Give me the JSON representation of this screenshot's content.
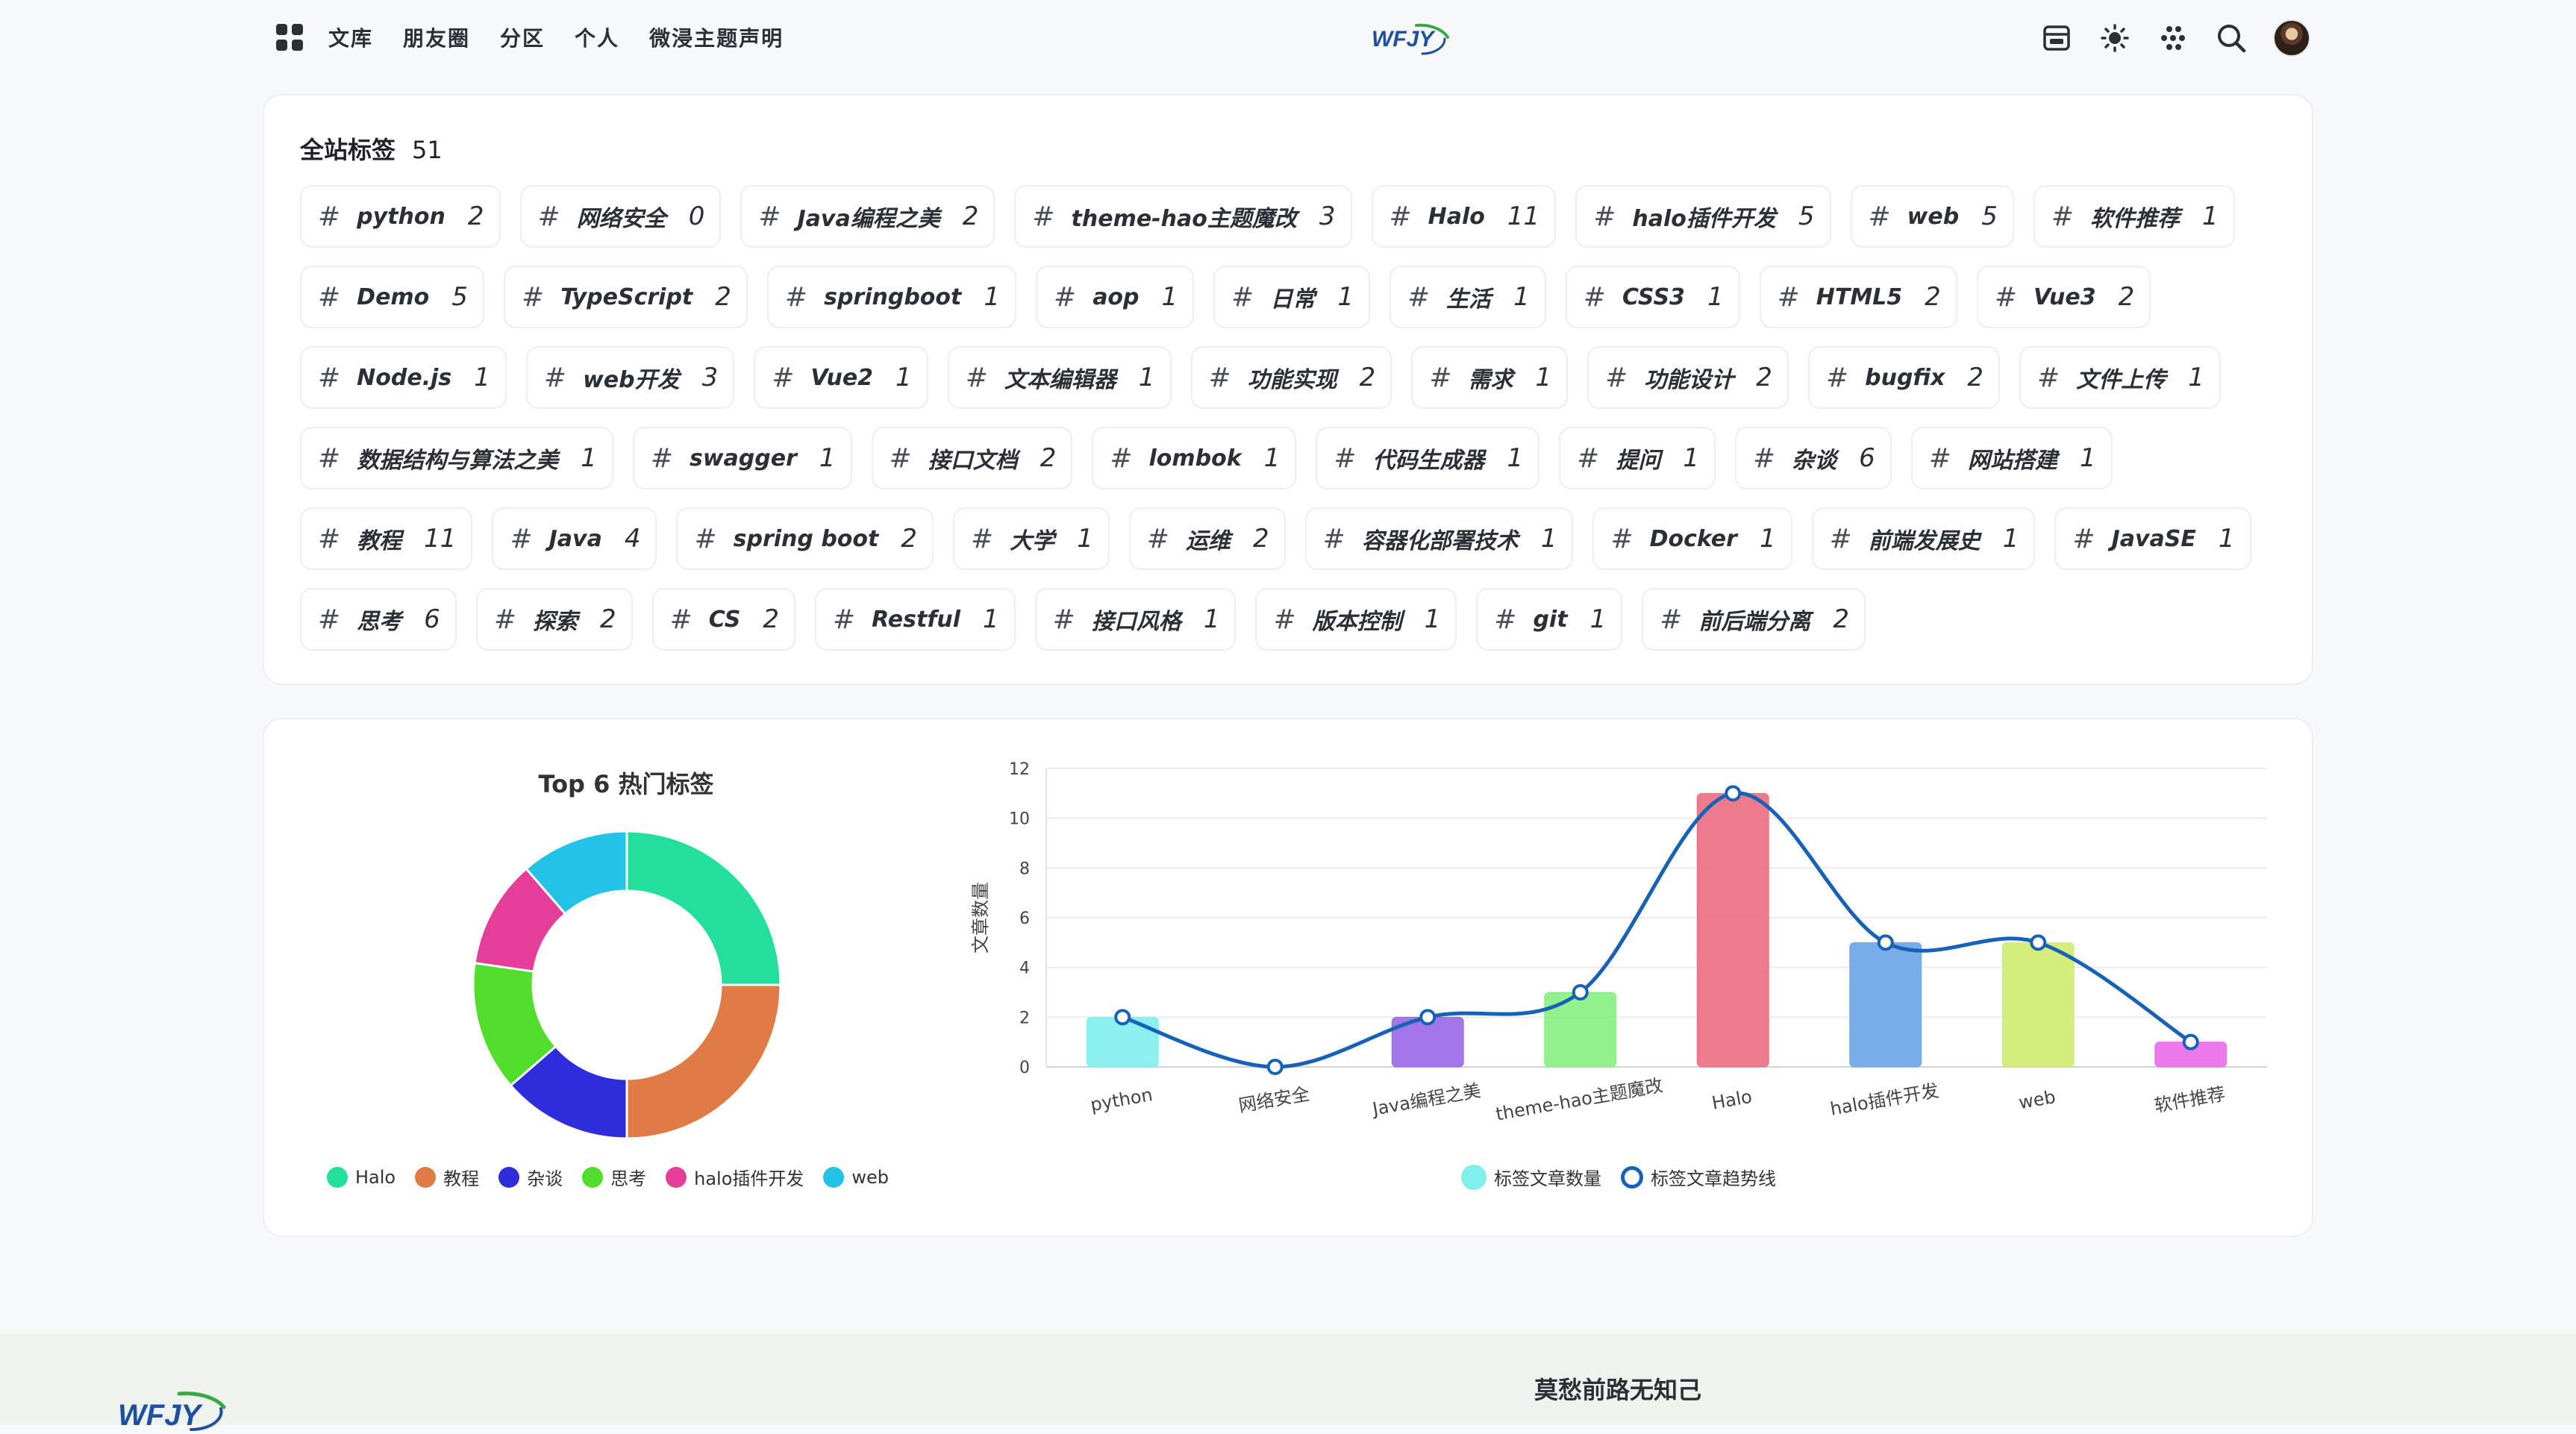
{
  "nav": {
    "links": [
      "文库",
      "朋友圈",
      "分区",
      "个人",
      "微浸主题声明"
    ],
    "logo_text": "WFJY",
    "icons": [
      "grid-menu-icon",
      "archive-icon",
      "sun-icon",
      "apps-icon",
      "search-icon"
    ]
  },
  "tags_section": {
    "title": "全站标签",
    "count": "51",
    "tags": [
      {
        "name": "python",
        "count": "2"
      },
      {
        "name": "网络安全",
        "count": "0"
      },
      {
        "name": "Java编程之美",
        "count": "2"
      },
      {
        "name": "theme-hao主题魔改",
        "count": "3"
      },
      {
        "name": "Halo",
        "count": "11"
      },
      {
        "name": "halo插件开发",
        "count": "5"
      },
      {
        "name": "web",
        "count": "5"
      },
      {
        "name": "软件推荐",
        "count": "1"
      },
      {
        "name": "Demo",
        "count": "5"
      },
      {
        "name": "TypeScript",
        "count": "2"
      },
      {
        "name": "springboot",
        "count": "1"
      },
      {
        "name": "aop",
        "count": "1"
      },
      {
        "name": "日常",
        "count": "1"
      },
      {
        "name": "生活",
        "count": "1"
      },
      {
        "name": "CSS3",
        "count": "1"
      },
      {
        "name": "HTML5",
        "count": "2"
      },
      {
        "name": "Vue3",
        "count": "2"
      },
      {
        "name": "Node.js",
        "count": "1"
      },
      {
        "name": "web开发",
        "count": "3"
      },
      {
        "name": "Vue2",
        "count": "1"
      },
      {
        "name": "文本编辑器",
        "count": "1"
      },
      {
        "name": "功能实现",
        "count": "2"
      },
      {
        "name": "需求",
        "count": "1"
      },
      {
        "name": "功能设计",
        "count": "2"
      },
      {
        "name": "bugfix",
        "count": "2"
      },
      {
        "name": "文件上传",
        "count": "1"
      },
      {
        "name": "数据结构与算法之美",
        "count": "1"
      },
      {
        "name": "swagger",
        "count": "1"
      },
      {
        "name": "接口文档",
        "count": "2"
      },
      {
        "name": "lombok",
        "count": "1"
      },
      {
        "name": "代码生成器",
        "count": "1"
      },
      {
        "name": "提问",
        "count": "1"
      },
      {
        "name": "杂谈",
        "count": "6"
      },
      {
        "name": "网站搭建",
        "count": "1"
      },
      {
        "name": "教程",
        "count": "11"
      },
      {
        "name": "Java",
        "count": "4"
      },
      {
        "name": "spring boot",
        "count": "2"
      },
      {
        "name": "大学",
        "count": "1"
      },
      {
        "name": "运维",
        "count": "2"
      },
      {
        "name": "容器化部署技术",
        "count": "1"
      },
      {
        "name": "Docker",
        "count": "1"
      },
      {
        "name": "前端发展史",
        "count": "1"
      },
      {
        "name": "JavaSE",
        "count": "1"
      },
      {
        "name": "思考",
        "count": "6"
      },
      {
        "name": "探索",
        "count": "2"
      },
      {
        "name": "CS",
        "count": "2"
      },
      {
        "name": "Restful",
        "count": "1"
      },
      {
        "name": "接口风格",
        "count": "1"
      },
      {
        "name": "版本控制",
        "count": "1"
      },
      {
        "name": "git",
        "count": "1"
      },
      {
        "name": "前后端分离",
        "count": "2"
      }
    ]
  },
  "chart_data": [
    {
      "type": "pie",
      "title": "Top 6 热门标签",
      "donut": true,
      "categories": [
        "Halo",
        "教程",
        "杂谈",
        "思考",
        "halo插件开发",
        "web"
      ],
      "values": [
        11,
        11,
        6,
        6,
        5,
        5
      ],
      "colors": [
        "#22e09b",
        "#e07b45",
        "#2d2ddb",
        "#52dd2c",
        "#e43d9a",
        "#22c3e6"
      ],
      "legend_position": "bottom"
    },
    {
      "type": "bar",
      "categories": [
        "python",
        "网络安全",
        "Java编程之美",
        "theme-hao主题魔改",
        "Halo",
        "halo插件开发",
        "web",
        "软件推荐"
      ],
      "ylabel": "文章数量",
      "ylim": [
        0,
        12
      ],
      "yticks": [
        0,
        2,
        4,
        6,
        8,
        10,
        12
      ],
      "grid": true,
      "legend_position": "bottom",
      "series": [
        {
          "name": "标签文章数量",
          "kind": "bar",
          "values": [
            2,
            0,
            2,
            3,
            11,
            5,
            5,
            1
          ],
          "colors": [
            "#7ff0ec",
            "#c9c9f0",
            "#9866e6",
            "#86ef80",
            "#ea6e80",
            "#6aa4e8",
            "#cfeb6f",
            "#e96ae8"
          ]
        },
        {
          "name": "标签文章趋势线",
          "kind": "line",
          "smooth": true,
          "values": [
            2,
            0,
            2,
            3,
            11,
            5,
            5,
            1
          ],
          "color": "#1761b6"
        }
      ]
    }
  ],
  "footer": {
    "slogan": "莫愁前路无知己",
    "logo_text": "WFJY"
  }
}
